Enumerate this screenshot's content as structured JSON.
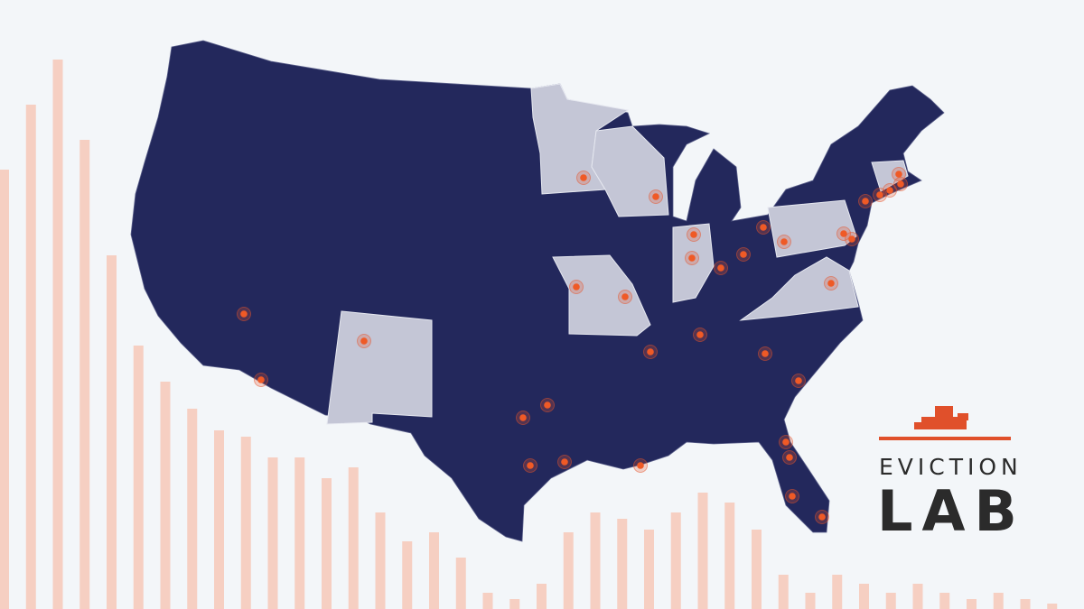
{
  "logo": {
    "line1": "EVICTION",
    "line2": "LAB"
  }
}
